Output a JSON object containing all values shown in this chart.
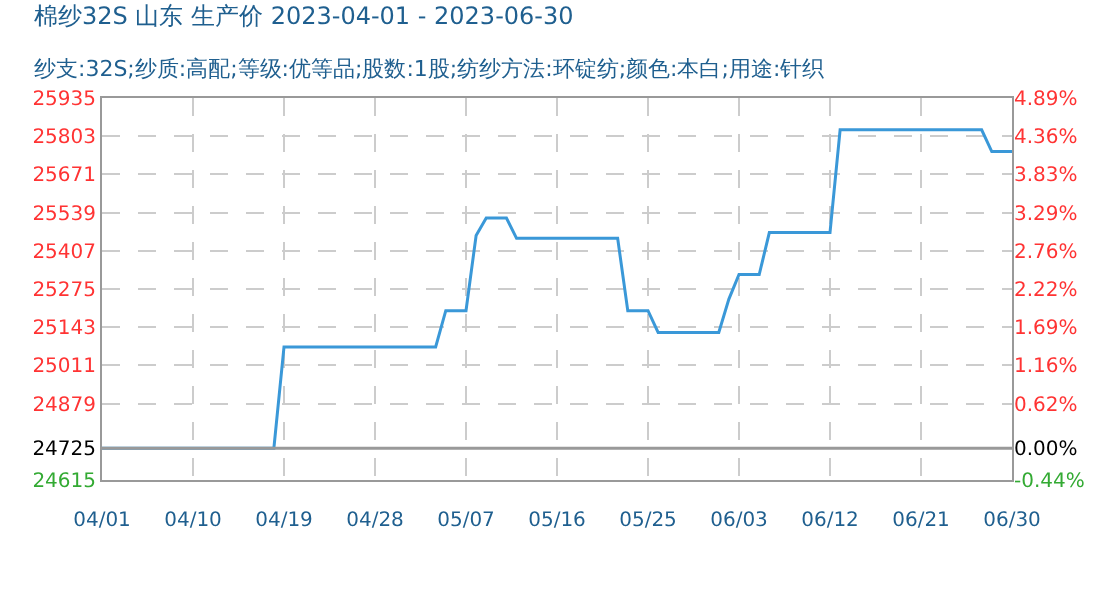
{
  "chart_data": {
    "type": "line",
    "title": "棉纱32S 山东 生产价 2023-04-01 - 2023-06-30",
    "subtitle": "纱支:32S;纱质:高配;等级:优等品;股数:1股;纺纱方法:环锭纺;颜色:本白;用途:针织",
    "x": [
      "2023-04-01",
      "2023-04-18",
      "2023-04-19",
      "2023-05-04",
      "2023-05-05",
      "2023-05-07",
      "2023-05-08",
      "2023-05-09",
      "2023-05-11",
      "2023-05-12",
      "2023-05-22",
      "2023-05-23",
      "2023-05-25",
      "2023-05-26",
      "2023-06-01",
      "2023-06-02",
      "2023-06-03",
      "2023-06-05",
      "2023-06-06",
      "2023-06-12",
      "2023-06-13",
      "2023-06-27",
      "2023-06-28",
      "2023-06-30"
    ],
    "series": [
      {
        "color": "#3a98d8",
        "values": [
          24725,
          24725,
          25075,
          25075,
          25200,
          25200,
          25460,
          25520,
          25520,
          25450,
          25450,
          25200,
          25200,
          25125,
          25125,
          25240,
          25325,
          25325,
          25470,
          25470,
          25825,
          25825,
          25750,
          25750
        ]
      }
    ],
    "xlim": [
      "2023-04-01",
      "2023-06-30"
    ],
    "xticks": [
      {
        "value": "2023-04-01",
        "label": "04/01"
      },
      {
        "value": "2023-04-10",
        "label": "04/10"
      },
      {
        "value": "2023-04-19",
        "label": "04/19"
      },
      {
        "value": "2023-04-28",
        "label": "04/28"
      },
      {
        "value": "2023-05-07",
        "label": "05/07"
      },
      {
        "value": "2023-05-16",
        "label": "05/16"
      },
      {
        "value": "2023-05-25",
        "label": "05/25"
      },
      {
        "value": "2023-06-03",
        "label": "06/03"
      },
      {
        "value": "2023-06-12",
        "label": "06/12"
      },
      {
        "value": "2023-06-21",
        "label": "06/21"
      },
      {
        "value": "2023-06-30",
        "label": "06/30"
      }
    ],
    "ylim": [
      24615,
      25935
    ],
    "yticks": [
      24615,
      24725,
      24879,
      25011,
      25143,
      25275,
      25407,
      25539,
      25671,
      25803,
      25935
    ],
    "y2lim": [
      -0.44,
      4.89
    ],
    "y2ticks": [
      {
        "value": -0.44,
        "label": "-0.44%"
      },
      {
        "value": 0,
        "label": "0.00%"
      },
      {
        "value": 0.62,
        "label": "0.62%"
      },
      {
        "value": 1.16,
        "label": "1.16%"
      },
      {
        "value": 1.69,
        "label": "1.69%"
      },
      {
        "value": 2.22,
        "label": "2.22%"
      },
      {
        "value": 2.76,
        "label": "2.76%"
      },
      {
        "value": 3.29,
        "label": "3.29%"
      },
      {
        "value": 3.83,
        "label": "3.83%"
      },
      {
        "value": 4.36,
        "label": "4.36%"
      },
      {
        "value": 4.89,
        "label": "4.89%"
      }
    ],
    "ref_lines": [
      {
        "axis": "y",
        "value": 24725,
        "color": "#999999",
        "line_style": "solid"
      }
    ],
    "grid": true,
    "marker": "none",
    "line_style": "solid"
  }
}
